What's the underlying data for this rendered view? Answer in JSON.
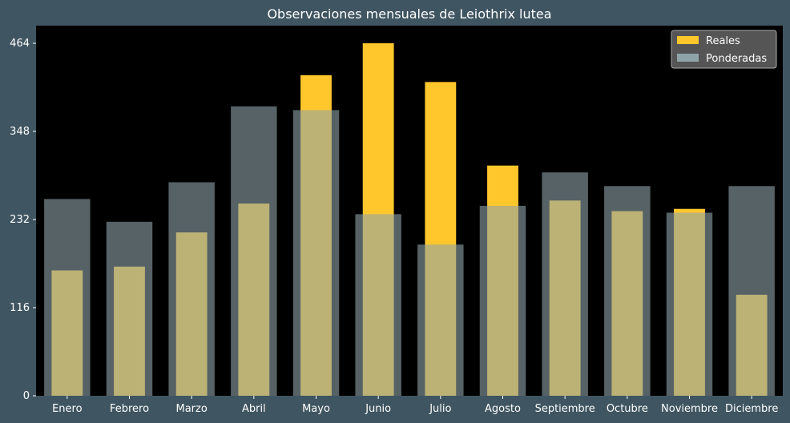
{
  "chart_data": {
    "type": "bar",
    "title": "Observaciones mensuales de Leiothrix lutea",
    "categories": [
      "Enero",
      "Febrero",
      "Marzo",
      "Abril",
      "Mayo",
      "Junio",
      "Julio",
      "Agosto",
      "Septiembre",
      "Octubre",
      "Noviembre",
      "Diciembre"
    ],
    "series": [
      {
        "name": "Reales",
        "color": "#ffc72c",
        "values": [
          165,
          170,
          215,
          253,
          422,
          464,
          413,
          303,
          257,
          243,
          246,
          133
        ]
      },
      {
        "name": "Ponderadas",
        "color": "#8fa3a9",
        "values": [
          259,
          229,
          281,
          381,
          376,
          239,
          199,
          250,
          294,
          276,
          241,
          276
        ]
      }
    ],
    "yticks": [
      0,
      116,
      232,
      348,
      464
    ],
    "ylim": [
      0,
      464
    ],
    "legend_position": "top-right",
    "grid": false
  }
}
